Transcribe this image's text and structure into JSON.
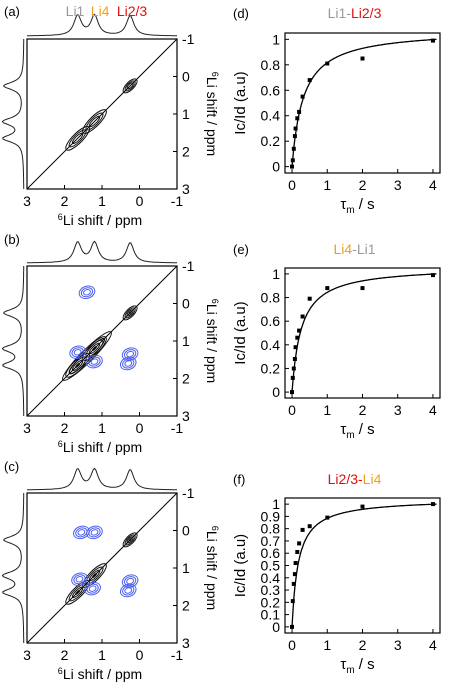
{
  "nmr_panels": [
    {
      "label": "(a)",
      "top_legend": [
        {
          "text": "Li1",
          "color": "#9a9a9a"
        },
        {
          "text": "Li4",
          "color": "#f0a020"
        },
        {
          "text": "Li2/3",
          "color": "#e01010"
        }
      ],
      "xlabel_sup": "6",
      "xlabel": "Li shift / ppm",
      "ylabel_sup": "6",
      "ylabel": "Li shift / ppm",
      "x_ticks": [
        "3",
        "2",
        "1",
        "0",
        "-1"
      ],
      "y_ticks": [
        "-1",
        "0",
        "1",
        "2",
        "3"
      ],
      "range_ppm": [
        3,
        -1
      ],
      "diagonal_peaks": [
        1.65,
        1.2,
        0.25
      ],
      "cross_peaks": []
    },
    {
      "label": "(b)",
      "top_legend": [],
      "xlabel_sup": "6",
      "xlabel": "Li shift / ppm",
      "ylabel_sup": "6",
      "ylabel": "Li shift / ppm",
      "x_ticks": [
        "3",
        "2",
        "1",
        "0",
        "-1"
      ],
      "y_ticks": [
        "-1",
        "0",
        "1",
        "2",
        "3"
      ],
      "range_ppm": [
        3,
        -1
      ],
      "diagonal_peaks": [
        1.65,
        1.2,
        0.25
      ],
      "cross_peaks": [
        [
          1.4,
          -0.3
        ],
        [
          1.65,
          1.3
        ],
        [
          1.2,
          1.55
        ],
        [
          0.25,
          1.35
        ],
        [
          0.3,
          1.6
        ]
      ]
    },
    {
      "label": "(c)",
      "top_legend": [],
      "xlabel_sup": "6",
      "xlabel": "Li shift / ppm",
      "ylabel_sup": "6",
      "ylabel": "Li shift / ppm",
      "x_ticks": [
        "3",
        "2",
        "1",
        "0",
        "-1"
      ],
      "y_ticks": [
        "-1",
        "0",
        "1",
        "2",
        "3"
      ],
      "range_ppm": [
        3,
        -1
      ],
      "diagonal_peaks": [
        1.65,
        1.2,
        0.25
      ],
      "cross_peaks": [
        [
          1.55,
          0.05
        ],
        [
          1.2,
          0.05
        ],
        [
          1.6,
          1.3
        ],
        [
          1.25,
          1.55
        ],
        [
          0.25,
          1.35
        ],
        [
          0.3,
          1.6
        ]
      ]
    }
  ],
  "chart_data": [
    {
      "type": "scatter",
      "label": "(d)",
      "title_parts": [
        {
          "text": "Li1",
          "color": "#9a9a9a"
        },
        {
          "text": "-",
          "color": "#9a9a9a"
        },
        {
          "text": "Li2/3",
          "color": "#e01010"
        }
      ],
      "xlabel": "τ",
      "xlabel_sub": "m",
      "xlabel_suffix": " / s",
      "ylabel": "Ic/Id (a.u)",
      "xlim": [
        -0.2,
        4.2
      ],
      "ylim": [
        -0.05,
        1.05
      ],
      "x_ticks": [
        "0",
        "1",
        "2",
        "3",
        "4"
      ],
      "y_ticks": [
        "0",
        "0.2",
        "0.4",
        "0.6",
        "0.8",
        "1"
      ],
      "x": [
        0,
        0.02,
        0.05,
        0.08,
        0.1,
        0.15,
        0.2,
        0.3,
        0.5,
        1,
        2,
        4
      ],
      "y": [
        0,
        0.05,
        0.14,
        0.24,
        0.3,
        0.38,
        0.43,
        0.55,
        0.68,
        0.81,
        0.85,
        0.99
      ],
      "fit_tau": 0.32
    },
    {
      "type": "scatter",
      "label": "(e)",
      "title_parts": [
        {
          "text": "Li4",
          "color": "#f0a020"
        },
        {
          "text": "-",
          "color": "#9a9a9a"
        },
        {
          "text": "Li1",
          "color": "#9a9a9a"
        }
      ],
      "xlabel": "τ",
      "xlabel_sub": "m",
      "xlabel_suffix": " / s",
      "ylabel": "Ic/Id (a.u)",
      "xlim": [
        -0.2,
        4.2
      ],
      "ylim": [
        -0.05,
        1.05
      ],
      "x_ticks": [
        "0",
        "1",
        "2",
        "3",
        "4"
      ],
      "y_ticks": [
        "0",
        "0.2",
        "0.4",
        "0.6",
        "0.8",
        "1"
      ],
      "x": [
        0,
        0.02,
        0.05,
        0.08,
        0.1,
        0.15,
        0.2,
        0.3,
        0.5,
        1,
        2,
        4
      ],
      "y": [
        0,
        0.12,
        0.2,
        0.28,
        0.38,
        0.46,
        0.52,
        0.64,
        0.79,
        0.88,
        0.88,
        0.99
      ],
      "fit_tau": 0.26
    },
    {
      "type": "scatter",
      "label": "(f)",
      "title_parts": [
        {
          "text": "Li2/3",
          "color": "#e01010"
        },
        {
          "text": "-",
          "color": "#e01010"
        },
        {
          "text": "Li4",
          "color": "#f0a020"
        }
      ],
      "xlabel": "τ",
      "xlabel_sub": "m",
      "xlabel_suffix": " / s",
      "ylabel": "Ic/Id (a.u)",
      "xlim": [
        -0.2,
        4.2
      ],
      "ylim": [
        -0.05,
        1.05
      ],
      "x_ticks": [
        "0",
        "1",
        "2",
        "3",
        "4"
      ],
      "y_ticks": [
        "0",
        "0.1",
        "0.2",
        "0.3",
        "0.4",
        "0.5",
        "0.6",
        "0.7",
        "0.8",
        "0.9",
        "1"
      ],
      "x": [
        0,
        0.02,
        0.05,
        0.08,
        0.1,
        0.15,
        0.2,
        0.3,
        0.5,
        1,
        2,
        4
      ],
      "y": [
        0,
        0.21,
        0.35,
        0.43,
        0.52,
        0.61,
        0.68,
        0.79,
        0.82,
        0.89,
        0.98,
        1.0
      ],
      "fit_tau": 0.18
    }
  ],
  "colors": {
    "contour_black": "#111111",
    "contour_blue": "#4a5ef0",
    "axis": "#000000"
  }
}
